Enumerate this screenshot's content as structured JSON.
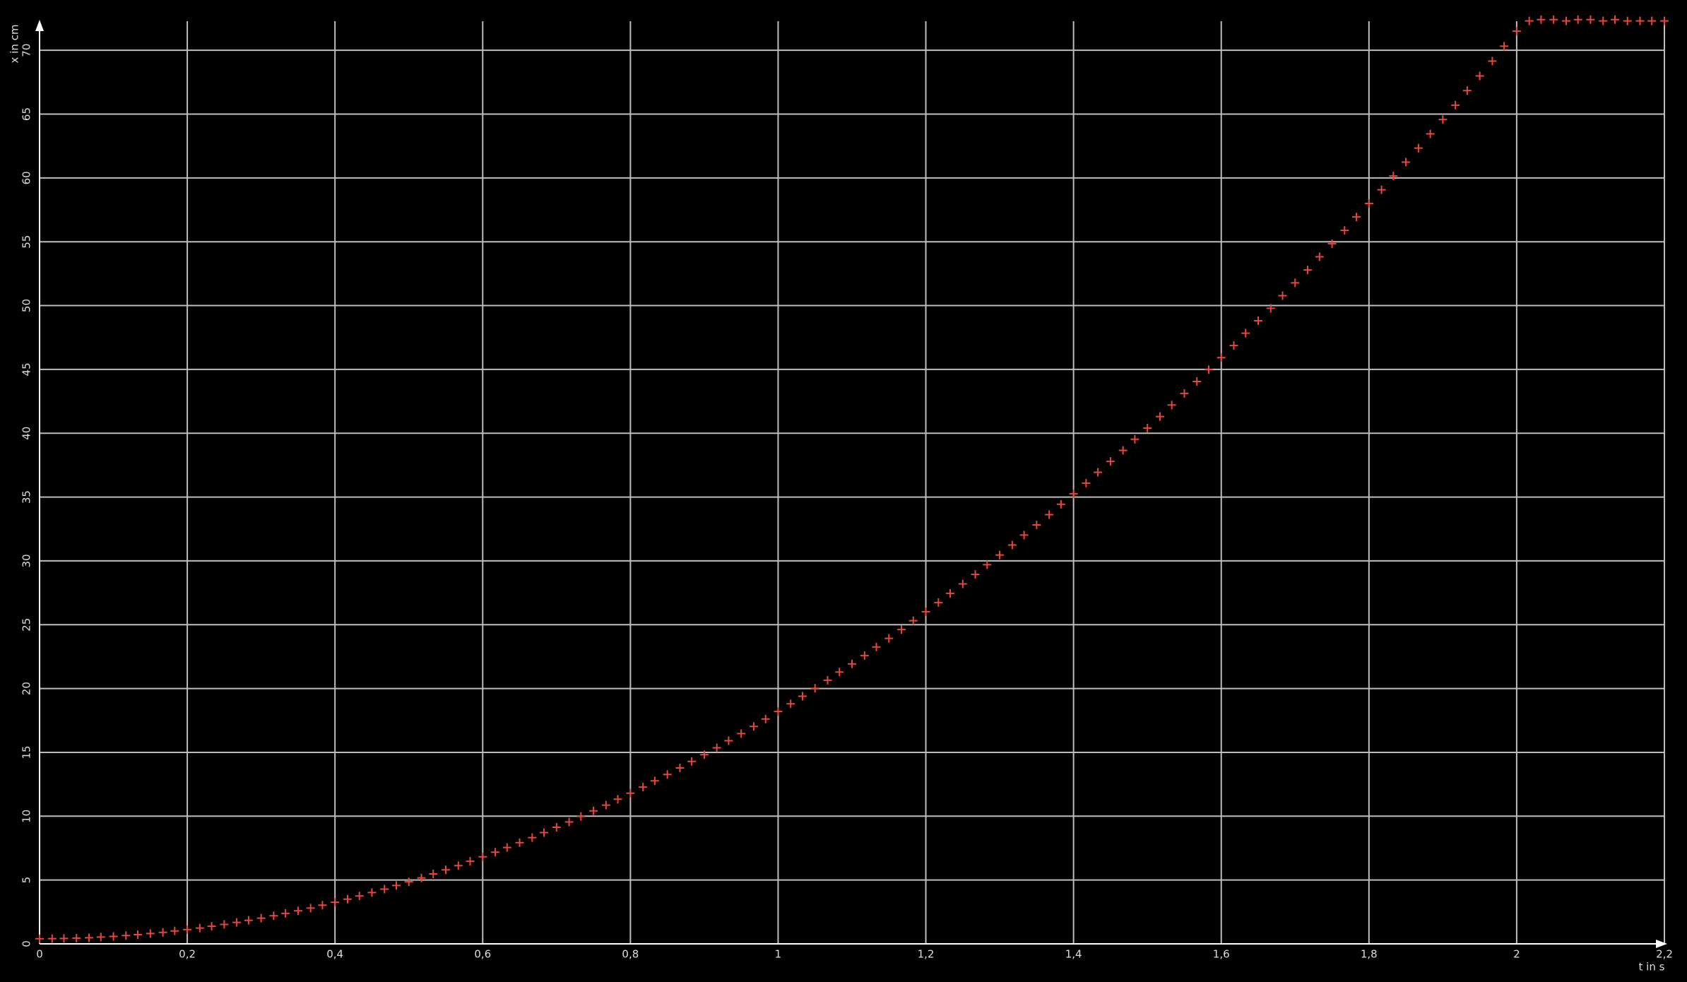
{
  "chart_data": {
    "type": "scatter",
    "xlabel": "t in s",
    "ylabel": "x in cm",
    "x": [
      0,
      0.017,
      0.033,
      0.05,
      0.067,
      0.083,
      0.1,
      0.117,
      0.133,
      0.15,
      0.167,
      0.183,
      0.2,
      0.217,
      0.233,
      0.25,
      0.267,
      0.283,
      0.3,
      0.317,
      0.333,
      0.35,
      0.367,
      0.383,
      0.4,
      0.417,
      0.433,
      0.45,
      0.467,
      0.483,
      0.5,
      0.517,
      0.533,
      0.55,
      0.567,
      0.583,
      0.6,
      0.617,
      0.633,
      0.65,
      0.667,
      0.683,
      0.7,
      0.717,
      0.733,
      0.75,
      0.767,
      0.783,
      0.8,
      0.817,
      0.833,
      0.85,
      0.867,
      0.883,
      0.9,
      0.917,
      0.933,
      0.95,
      0.967,
      0.983,
      1,
      1.017,
      1.033,
      1.05,
      1.067,
      1.083,
      1.1,
      1.117,
      1.133,
      1.15,
      1.167,
      1.183,
      1.2,
      1.217,
      1.233,
      1.25,
      1.267,
      1.283,
      1.3,
      1.317,
      1.333,
      1.35,
      1.367,
      1.383,
      1.4,
      1.417,
      1.433,
      1.45,
      1.467,
      1.483,
      1.5,
      1.517,
      1.533,
      1.55,
      1.567,
      1.583,
      1.6,
      1.617,
      1.633,
      1.65,
      1.667,
      1.683,
      1.7,
      1.717,
      1.733,
      1.75,
      1.767,
      1.783,
      1.8,
      1.817,
      1.833,
      1.85,
      1.867,
      1.883,
      1.9,
      1.917,
      1.933,
      1.95,
      1.967,
      1.983,
      2,
      2.017,
      2.033,
      2.05,
      2.067,
      2.083,
      2.1,
      2.117,
      2.133,
      2.15,
      2.167,
      2.183,
      2.2
    ],
    "values": [
      0.4,
      0.41,
      0.42,
      0.45,
      0.48,
      0.53,
      0.58,
      0.65,
      0.72,
      0.81,
      0.9,
      1.01,
      1.12,
      1.24,
      1.38,
      1.52,
      1.68,
      1.84,
      2.01,
      2.2,
      2.39,
      2.59,
      2.8,
      3.03,
      3.26,
      3.5,
      3.75,
      4.02,
      4.29,
      4.57,
      4.86,
      5.16,
      5.48,
      5.8,
      6.13,
      6.47,
      6.82,
      7.18,
      7.55,
      7.93,
      8.32,
      8.72,
      9.13,
      9.55,
      9.98,
      10.42,
      10.87,
      11.33,
      11.8,
      12.28,
      12.77,
      13.27,
      13.78,
      14.29,
      14.82,
      15.36,
      15.91,
      16.47,
      17.03,
      17.61,
      18.2,
      18.8,
      19.4,
      20.02,
      20.65,
      21.29,
      21.93,
      22.59,
      23.26,
      23.93,
      24.62,
      25.31,
      26.02,
      26.74,
      27.46,
      28.2,
      28.94,
      29.7,
      30.46,
      31.24,
      32.02,
      32.82,
      33.62,
      34.44,
      35.26,
      36.09,
      36.94,
      37.79,
      38.66,
      39.53,
      40.41,
      41.31,
      42.21,
      43.12,
      44.05,
      44.98,
      45.92,
      46.87,
      47.84,
      48.81,
      49.79,
      50.78,
      51.78,
      52.79,
      53.82,
      54.85,
      55.89,
      56.94,
      58.0,
      59.07,
      60.15,
      61.24,
      62.34,
      63.45,
      64.57,
      65.7,
      66.84,
      67.99,
      69.15,
      70.32,
      71.5,
      72.3,
      72.4,
      72.4,
      72.3,
      72.4,
      72.4,
      72.3,
      72.4,
      72.3,
      72.3,
      72.3,
      72.3
    ],
    "color": "#e8473d",
    "xlim": [
      0,
      2.2
    ],
    "xticks": [
      0,
      {
        "value": 0.2,
        "label": "0,2"
      },
      {
        "value": 0.4,
        "label": "0,4"
      },
      {
        "value": 0.6,
        "label": "0,6"
      },
      {
        "value": 0.8,
        "label": "0,8"
      },
      1,
      {
        "value": 1.2,
        "label": "1,2"
      },
      {
        "value": 1.4,
        "label": "1,4"
      },
      {
        "value": 1.6,
        "label": "1,6"
      },
      {
        "value": 1.8,
        "label": "1,8"
      },
      2,
      {
        "value": 2.2,
        "label": "2,2"
      }
    ],
    "ylim": [
      0,
      72.5
    ],
    "yticks": [
      0,
      5,
      10,
      15,
      20,
      25,
      30,
      35,
      40,
      45,
      50,
      55,
      60,
      65,
      70
    ],
    "grid": true
  }
}
